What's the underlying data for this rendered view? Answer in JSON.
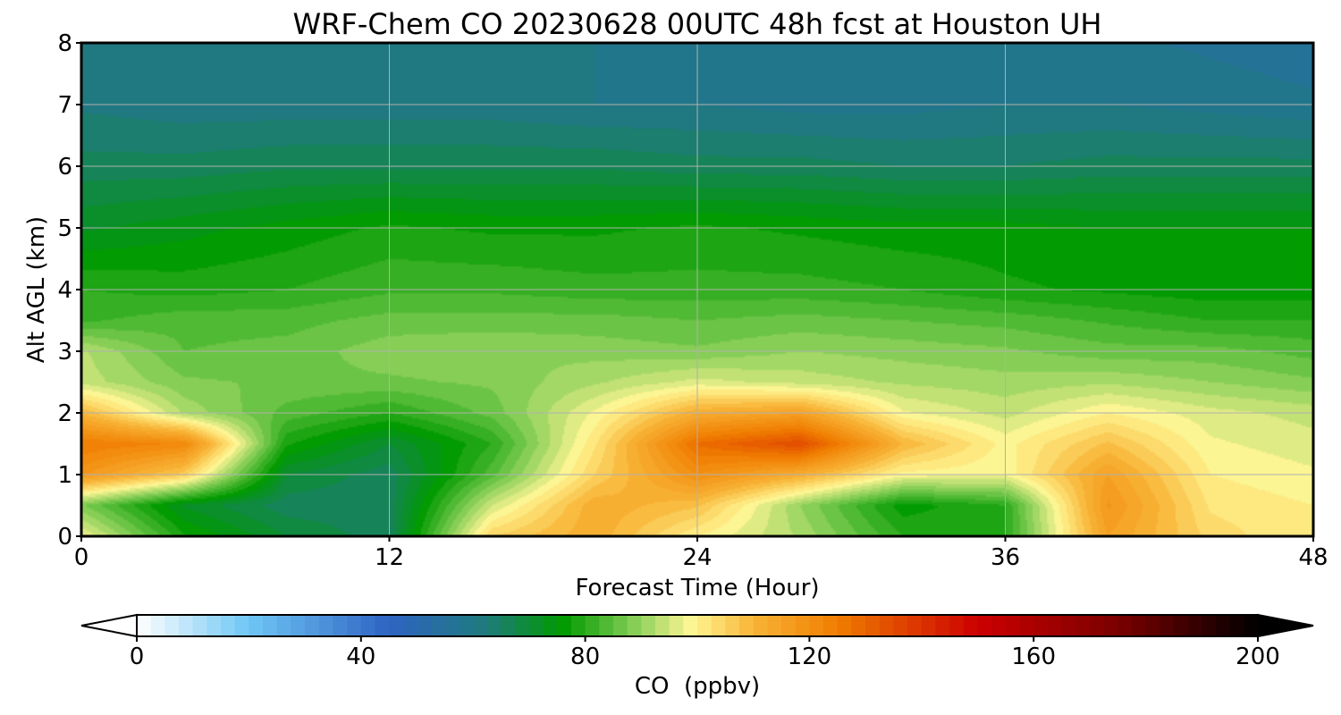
{
  "chart_data": {
    "type": "heatmap",
    "subtype": "filled-contour time-height cross-section",
    "title": "WRF-Chem CO  20230628 00UTC 48h fcst at Houston UH",
    "xlabel": "Forecast Time (Hour)",
    "ylabel": "Alt AGL (km)",
    "xlim": [
      0,
      48
    ],
    "ylim": [
      0,
      8
    ],
    "x_ticks": [
      0,
      12,
      24,
      36,
      48
    ],
    "y_ticks": [
      0,
      1,
      2,
      3,
      4,
      5,
      6,
      7,
      8
    ],
    "grid": true,
    "x": [
      0,
      4,
      8,
      12,
      16,
      20,
      24,
      28,
      32,
      36,
      40,
      44,
      48
    ],
    "y": [
      0,
      0.5,
      1,
      1.5,
      2,
      2.5,
      3,
      3.5,
      4,
      5,
      6,
      7,
      8
    ],
    "z_rows_by_altitude": [
      [
        98,
        78,
        70,
        66,
        105,
        112,
        100,
        92,
        80,
        80,
        115,
        104,
        100
      ],
      [
        88,
        72,
        66,
        66,
        95,
        112,
        108,
        90,
        76,
        80,
        118,
        102,
        100
      ],
      [
        118,
        106,
        70,
        66,
        84,
        105,
        120,
        112,
        99,
        98,
        115,
        100,
        98
      ],
      [
        125,
        122,
        78,
        70,
        80,
        102,
        128,
        135,
        110,
        99,
        108,
        98,
        96
      ],
      [
        110,
        92,
        84,
        80,
        86,
        98,
        112,
        115,
        98,
        94,
        100,
        96,
        94
      ],
      [
        94,
        88,
        87,
        87,
        88,
        92,
        96,
        94,
        92,
        91,
        92,
        90,
        88
      ],
      [
        93,
        85,
        86,
        89,
        90,
        89,
        88,
        90,
        89,
        88,
        86,
        86,
        84
      ],
      [
        82,
        84,
        84,
        86,
        86,
        86,
        85,
        86,
        85,
        84,
        82,
        80,
        80
      ],
      [
        80,
        79,
        80,
        82,
        82,
        81,
        81,
        81,
        80,
        78,
        77,
        76,
        76
      ],
      [
        72,
        74,
        76,
        78,
        77,
        77,
        78,
        77,
        76,
        76,
        75,
        75,
        75
      ],
      [
        66,
        66,
        67,
        67,
        67,
        67,
        66,
        66,
        65,
        65,
        66,
        66,
        66
      ],
      [
        62,
        61,
        61,
        61,
        61,
        60,
        60,
        59,
        59,
        60,
        60,
        59,
        58
      ],
      [
        61,
        60,
        60,
        60,
        60,
        60,
        59,
        58,
        58,
        58,
        58,
        57,
        56
      ]
    ],
    "colorbar": {
      "label": "CO  (ppbv)",
      "min": 0,
      "max": 200,
      "levels_step": 2.5,
      "ticks": [
        0,
        40,
        80,
        120,
        160,
        200
      ],
      "extend": "both",
      "orientation": "horizontal",
      "placement": "bottom",
      "color_stops": [
        {
          "value": 0,
          "color": "#ffffff"
        },
        {
          "value": 20,
          "color": "#6ec6f5"
        },
        {
          "value": 45,
          "color": "#2f63c2"
        },
        {
          "value": 62,
          "color": "#1f7a7e"
        },
        {
          "value": 76,
          "color": "#009a00"
        },
        {
          "value": 88,
          "color": "#7ecb52"
        },
        {
          "value": 99,
          "color": "#fff694"
        },
        {
          "value": 110,
          "color": "#f8b436"
        },
        {
          "value": 125,
          "color": "#f07d00"
        },
        {
          "value": 150,
          "color": "#cc0000"
        },
        {
          "value": 175,
          "color": "#7a0000"
        },
        {
          "value": 200,
          "color": "#000000"
        }
      ]
    }
  }
}
